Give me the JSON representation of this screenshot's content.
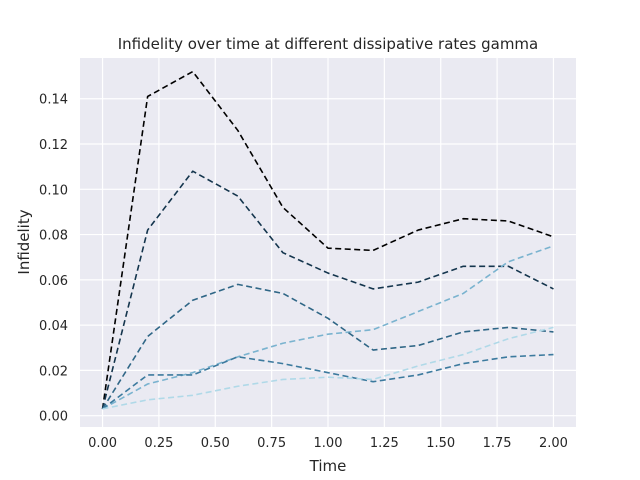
{
  "chart_data": {
    "type": "line",
    "title": "Infidelity over time at different dissipative rates gamma",
    "xlabel": "Time",
    "ylabel": "Infidelity",
    "xlim": [
      -0.1,
      2.1
    ],
    "ylim": [
      -0.005,
      0.158
    ],
    "xticks": [
      0.0,
      0.25,
      0.5,
      0.75,
      1.0,
      1.25,
      1.5,
      1.75,
      2.0
    ],
    "xtick_labels": [
      "0.00",
      "0.25",
      "0.50",
      "0.75",
      "1.00",
      "1.25",
      "1.50",
      "1.75",
      "2.00"
    ],
    "yticks": [
      0.0,
      0.02,
      0.04,
      0.06,
      0.08,
      0.1,
      0.12,
      0.14
    ],
    "ytick_labels": [
      "0.00",
      "0.02",
      "0.04",
      "0.06",
      "0.08",
      "0.10",
      "0.12",
      "0.14"
    ],
    "grid": true,
    "x": [
      0.0,
      0.2,
      0.4,
      0.6,
      0.8,
      1.0,
      1.2,
      1.4,
      1.6,
      1.8,
      2.0
    ],
    "series": [
      {
        "color": "#000000",
        "values": [
          0.003,
          0.141,
          0.152,
          0.126,
          0.092,
          0.074,
          0.073,
          0.082,
          0.087,
          0.086,
          0.079
        ]
      },
      {
        "color": "#14354d",
        "values": [
          0.003,
          0.082,
          0.108,
          0.097,
          0.072,
          0.063,
          0.056,
          0.059,
          0.066,
          0.066,
          0.056
        ]
      },
      {
        "color": "#7ab3cf",
        "values": [
          0.003,
          0.014,
          0.019,
          0.026,
          0.032,
          0.036,
          0.038,
          0.046,
          0.054,
          0.068,
          0.075
        ]
      },
      {
        "color": "#2f6686",
        "values": [
          0.003,
          0.035,
          0.051,
          0.058,
          0.054,
          0.043,
          0.029,
          0.031,
          0.037,
          0.039,
          0.037
        ]
      },
      {
        "color": "#3c7a9e",
        "values": [
          0.003,
          0.018,
          0.018,
          0.026,
          0.023,
          0.019,
          0.015,
          0.018,
          0.023,
          0.026,
          0.027
        ]
      },
      {
        "color": "#b0d9e8",
        "values": [
          0.003,
          0.007,
          0.009,
          0.013,
          0.016,
          0.017,
          0.016,
          0.022,
          0.027,
          0.034,
          0.039
        ]
      }
    ]
  },
  "style": {
    "plot_background": "#eaeaf2",
    "grid_color": "#ffffff",
    "text_color": "#262626"
  }
}
